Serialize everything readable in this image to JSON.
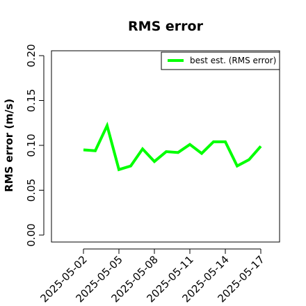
{
  "chart_data": {
    "type": "line",
    "title": "RMS error",
    "ylabel": "RMS error (m/s)",
    "xlabel": "",
    "ylim": [
      0,
      0.2
    ],
    "yticks": [
      "0.00",
      "0.05",
      "0.10",
      "0.15",
      "0.20"
    ],
    "ytick_values": [
      0,
      0.05,
      0.1,
      0.15,
      0.2
    ],
    "xticks": [
      "2025-05-02",
      "2025-05-05",
      "2025-05-08",
      "2025-05-11",
      "2025-05-14",
      "2025-05-17"
    ],
    "highlighted_xtick": "2025-05-08",
    "highlight_color": "#228b22",
    "series_color": "#00ff00",
    "legend_position": "top-right",
    "grid": false,
    "series": [
      {
        "name": "best est. (RMS error)",
        "x": [
          "2025-05-02",
          "2025-05-03",
          "2025-05-04",
          "2025-05-05",
          "2025-05-06",
          "2025-05-07",
          "2025-05-08",
          "2025-05-09",
          "2025-05-10",
          "2025-05-11",
          "2025-05-12",
          "2025-05-13",
          "2025-05-14",
          "2025-05-15",
          "2025-05-16",
          "2025-05-17"
        ],
        "values": [
          0.095,
          0.094,
          0.122,
          0.073,
          0.077,
          0.096,
          0.082,
          0.093,
          0.092,
          0.101,
          0.091,
          0.104,
          0.104,
          0.077,
          0.084,
          0.099
        ]
      }
    ]
  }
}
